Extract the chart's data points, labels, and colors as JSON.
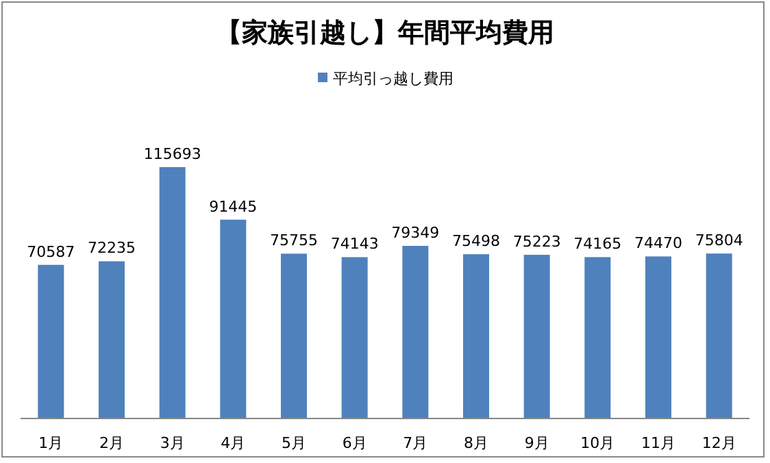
{
  "chart_data": {
    "type": "bar",
    "title": "【家族引越し】年間平均費用",
    "categories": [
      "1月",
      "2月",
      "3月",
      "4月",
      "5月",
      "6月",
      "7月",
      "8月",
      "9月",
      "10月",
      "11月",
      "12月"
    ],
    "series": [
      {
        "name": "平均引っ越し費用",
        "color": "#4f81bd",
        "values": [
          70587,
          72235,
          115693,
          91445,
          75755,
          74143,
          79349,
          75498,
          75223,
          74165,
          74470,
          75804
        ]
      }
    ],
    "data_labels": true,
    "legend": "top",
    "tick_labels": "x"
  }
}
